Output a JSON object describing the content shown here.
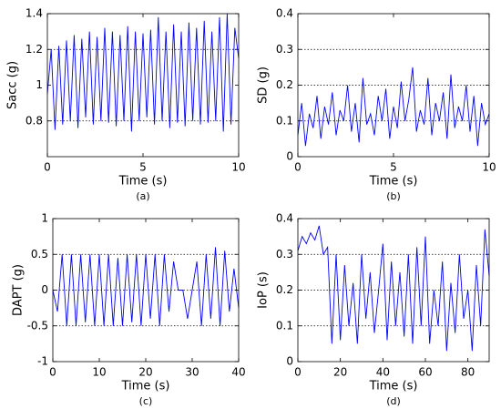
{
  "chart_data": [
    {
      "type": "line",
      "caption": "(a)",
      "xlabel": "Time (s)",
      "ylabel": "Sacc (g)",
      "color": "#0000ff",
      "x": [
        0,
        0.2,
        0.4,
        0.6,
        0.8,
        1,
        1.2,
        1.4,
        1.6,
        1.8,
        2,
        2.2,
        2.4,
        2.6,
        2.8,
        3,
        3.2,
        3.4,
        3.6,
        3.8,
        4,
        4.2,
        4.4,
        4.6,
        4.8,
        5,
        5.2,
        5.4,
        5.6,
        5.8,
        6,
        6.2,
        6.4,
        6.6,
        6.8,
        7,
        7.2,
        7.4,
        7.6,
        7.8,
        8,
        8.2,
        8.4,
        8.6,
        8.8,
        9,
        9.2,
        9.4,
        9.6,
        9.8,
        10
      ],
      "values": [
        0.95,
        1.2,
        0.75,
        1.22,
        0.78,
        1.25,
        0.8,
        1.28,
        0.76,
        1.26,
        0.82,
        1.3,
        0.78,
        1.27,
        0.8,
        1.32,
        0.79,
        1.3,
        0.77,
        1.28,
        0.8,
        1.33,
        0.74,
        1.3,
        0.8,
        1.29,
        0.82,
        1.31,
        0.78,
        1.38,
        0.8,
        1.3,
        0.76,
        1.34,
        0.79,
        1.3,
        0.77,
        1.35,
        0.8,
        1.32,
        0.78,
        1.36,
        0.79,
        1.3,
        0.8,
        1.38,
        0.74,
        1.4,
        0.78,
        1.32,
        1.15
      ],
      "xlim": [
        0,
        10
      ],
      "xticks": [
        0,
        5,
        10
      ],
      "ylim": [
        0.6,
        1.4
      ],
      "yticks": [
        0.8,
        1,
        1.2,
        1.4
      ],
      "hlines": [
        0.8,
        1.2
      ]
    },
    {
      "type": "line",
      "caption": "(b)",
      "xlabel": "Time (s)",
      "ylabel": "SD (g)",
      "color": "#0000ff",
      "x": [
        0,
        0.2,
        0.4,
        0.6,
        0.8,
        1,
        1.2,
        1.4,
        1.6,
        1.8,
        2,
        2.2,
        2.4,
        2.6,
        2.8,
        3,
        3.2,
        3.4,
        3.6,
        3.8,
        4,
        4.2,
        4.4,
        4.6,
        4.8,
        5,
        5.2,
        5.4,
        5.6,
        5.8,
        6,
        6.2,
        6.4,
        6.6,
        6.8,
        7,
        7.2,
        7.4,
        7.6,
        7.8,
        8,
        8.2,
        8.4,
        8.6,
        8.8,
        9,
        9.2,
        9.4,
        9.6,
        9.8,
        10
      ],
      "values": [
        0.06,
        0.15,
        0.03,
        0.12,
        0.08,
        0.17,
        0.05,
        0.14,
        0.09,
        0.18,
        0.06,
        0.13,
        0.1,
        0.2,
        0.07,
        0.15,
        0.04,
        0.22,
        0.09,
        0.12,
        0.06,
        0.17,
        0.1,
        0.19,
        0.05,
        0.14,
        0.08,
        0.21,
        0.1,
        0.16,
        0.25,
        0.07,
        0.13,
        0.09,
        0.22,
        0.06,
        0.15,
        0.1,
        0.18,
        0.05,
        0.23,
        0.08,
        0.14,
        0.1,
        0.2,
        0.07,
        0.17,
        0.03,
        0.15,
        0.09,
        0.12
      ],
      "xlim": [
        0,
        10
      ],
      "xticks": [
        0,
        5,
        10
      ],
      "ylim": [
        0,
        0.4
      ],
      "yticks": [
        0,
        0.1,
        0.2,
        0.3,
        0.4
      ],
      "hlines": [
        0.1,
        0.2,
        0.3
      ]
    },
    {
      "type": "line",
      "caption": "(c)",
      "xlabel": "Time (s)",
      "ylabel": "DAPT (g)",
      "color": "#0000ff",
      "x": [
        0,
        1,
        2,
        3,
        4,
        5,
        6,
        7,
        8,
        9,
        10,
        11,
        12,
        13,
        14,
        15,
        16,
        17,
        18,
        19,
        20,
        21,
        22,
        23,
        24,
        25,
        26,
        27,
        28,
        29,
        30,
        31,
        32,
        33,
        34,
        35,
        36,
        37,
        38,
        39,
        40
      ],
      "values": [
        0,
        -0.3,
        0.5,
        -0.5,
        0.5,
        -0.5,
        0.5,
        -0.45,
        0.5,
        -0.5,
        0.5,
        -0.5,
        0.5,
        -0.5,
        0.45,
        -0.5,
        0.5,
        -0.45,
        0.5,
        -0.5,
        0.5,
        -0.4,
        0.5,
        -0.5,
        0.5,
        -0.3,
        0.4,
        0,
        0,
        -0.4,
        0,
        0.4,
        -0.5,
        0.5,
        -0.4,
        0.6,
        -0.5,
        0.55,
        -0.3,
        0.3,
        -0.25
      ],
      "xlim": [
        0,
        40
      ],
      "xticks": [
        0,
        10,
        20,
        30,
        40
      ],
      "ylim": [
        -1,
        1
      ],
      "yticks": [
        -1,
        -0.5,
        0,
        0.5,
        1
      ],
      "hlines": [
        -0.5,
        0,
        0.5
      ]
    },
    {
      "type": "line",
      "caption": "(d)",
      "xlabel": "Time (s)",
      "ylabel": "IoP (s)",
      "color": "#0000ff",
      "x": [
        0,
        2,
        4,
        6,
        8,
        10,
        12,
        14,
        16,
        18,
        20,
        22,
        24,
        26,
        28,
        30,
        32,
        34,
        36,
        38,
        40,
        42,
        44,
        46,
        48,
        50,
        52,
        54,
        56,
        58,
        60,
        62,
        64,
        66,
        68,
        70,
        72,
        74,
        76,
        78,
        80,
        82,
        84,
        86,
        88,
        90
      ],
      "values": [
        0.31,
        0.35,
        0.33,
        0.36,
        0.34,
        0.38,
        0.3,
        0.32,
        0.05,
        0.3,
        0.06,
        0.27,
        0.1,
        0.22,
        0.05,
        0.3,
        0.12,
        0.25,
        0.08,
        0.2,
        0.33,
        0.06,
        0.28,
        0.1,
        0.25,
        0.07,
        0.3,
        0.05,
        0.32,
        0.1,
        0.35,
        0.05,
        0.2,
        0.1,
        0.28,
        0.03,
        0.22,
        0.08,
        0.3,
        0.12,
        0.2,
        0.03,
        0.27,
        0.1,
        0.37,
        0.24
      ],
      "xlim": [
        0,
        90
      ],
      "xticks": [
        0,
        20,
        40,
        60,
        80
      ],
      "ylim": [
        0,
        0.4
      ],
      "yticks": [
        0,
        0.1,
        0.2,
        0.3,
        0.4
      ],
      "hlines": [
        0.1,
        0.2,
        0.3
      ]
    }
  ]
}
